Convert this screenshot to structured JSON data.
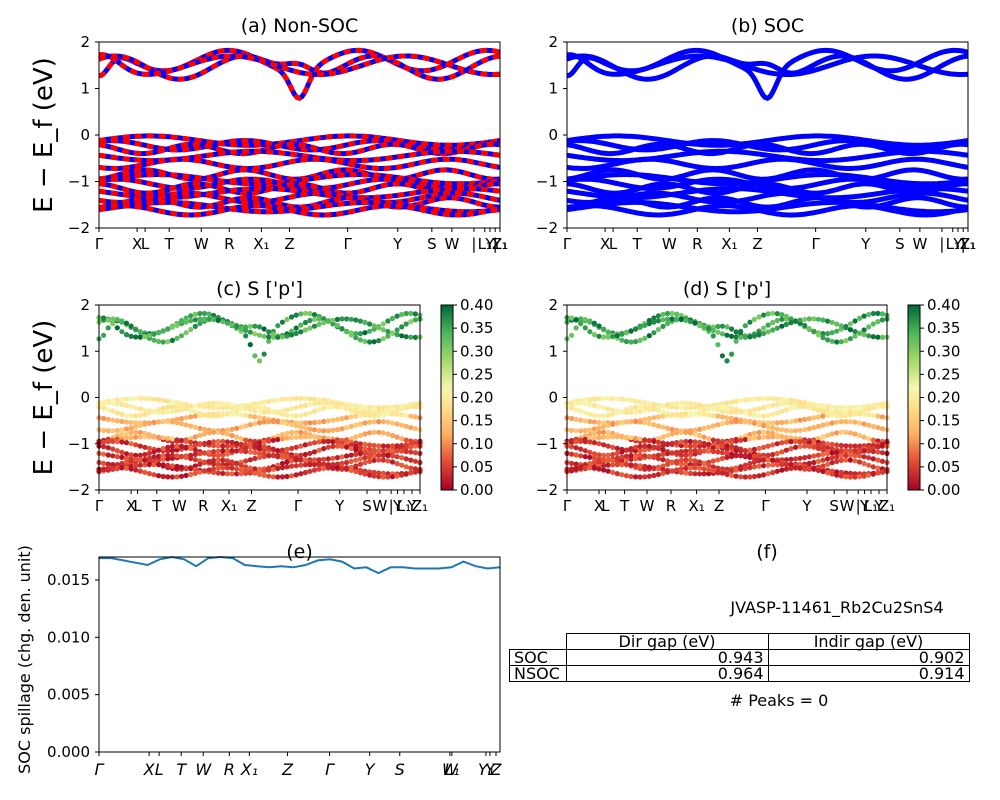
{
  "chart_data": [
    {
      "id": "a",
      "type": "line",
      "title": "(a) Non-SOC",
      "ylabel": "E − E_f (eV)",
      "ylim": [
        -2,
        2
      ],
      "yticks": [
        "2",
        "1",
        "0",
        "−1",
        "−2"
      ],
      "kpath": [
        "Γ",
        "X",
        "L",
        "T",
        "W",
        "R",
        "X₁",
        "Z",
        "Γ",
        "Y",
        "S",
        "W",
        "|",
        "L₁",
        "Y",
        "|",
        "Y₁",
        "Z₁"
      ],
      "series_colors": [
        "#0000ff",
        "#ff0000"
      ],
      "style": "dashed red over blue",
      "conduction_bands_ev": [
        0.9,
        1.85
      ],
      "valence_bands_ev": [
        -1.7,
        -0.1
      ]
    },
    {
      "id": "b",
      "type": "line",
      "title": "(b) SOC",
      "ylim": [
        -2,
        2
      ],
      "yticks": [
        "2",
        "1",
        "0",
        "−1",
        "−2"
      ],
      "kpath": [
        "Γ",
        "X",
        "L",
        "T",
        "W",
        "R",
        "X₁",
        "Z",
        "Γ",
        "Y",
        "S",
        "W",
        "|",
        "L₁",
        "Y",
        "|",
        "Y₁",
        "Z₁"
      ],
      "series_colors": [
        "#0000ff"
      ]
    },
    {
      "id": "c",
      "type": "scatter",
      "title": "(c)  S ['p']",
      "ylabel": "E − E_f (eV)",
      "ylim": [
        -2,
        2
      ],
      "yticks": [
        "2",
        "1",
        "0",
        "−1",
        "−2"
      ],
      "kpath": [
        "Γ",
        "X",
        "L",
        "T",
        "W",
        "R",
        "X₁",
        "Z",
        "Γ",
        "Y",
        "S",
        "W",
        "|",
        "Y",
        "L₁",
        "Y",
        "Z₁"
      ],
      "colorbar": {
        "min": 0.0,
        "max": 0.4,
        "ticks": [
          "0.40",
          "0.35",
          "0.30",
          "0.25",
          "0.20",
          "0.15",
          "0.10",
          "0.05",
          "0.00"
        ],
        "cmap": "RdYlGn"
      }
    },
    {
      "id": "d",
      "type": "scatter",
      "title": "(d) S ['p']",
      "ylim": [
        -2,
        2
      ],
      "yticks": [
        "2",
        "1",
        "0",
        "−1",
        "−2"
      ],
      "kpath": [
        "Γ",
        "X",
        "L",
        "T",
        "W",
        "R",
        "X₁",
        "Z",
        "Γ",
        "Y",
        "S",
        "W",
        "|",
        "Y",
        "L₁",
        "Y",
        "Z₁"
      ],
      "colorbar": {
        "min": 0.0,
        "max": 0.4,
        "ticks": [
          "0.40",
          "0.35",
          "0.30",
          "0.25",
          "0.20",
          "0.15",
          "0.10",
          "0.05",
          "0.00"
        ],
        "cmap": "RdYlGn"
      }
    },
    {
      "id": "e",
      "type": "line",
      "title": "(e)",
      "ylabel": "SOC spillage (chg. den. unit)",
      "ylim": [
        0,
        0.017
      ],
      "yticks": [
        "0.015",
        "0.010",
        "0.005",
        "0.000"
      ],
      "xticks": [
        "Γ",
        "X",
        "L",
        "T",
        "W",
        "R",
        "X₁",
        "Z",
        "Γ",
        "Y",
        "S",
        "W",
        "L₁",
        "Y₁",
        "Y",
        "Z"
      ],
      "series_colors": [
        "#1f77b4"
      ],
      "values": [
        0.0169,
        0.0169,
        0.0167,
        0.0165,
        0.0163,
        0.0168,
        0.017,
        0.0168,
        0.0162,
        0.0169,
        0.017,
        0.0169,
        0.0163,
        0.0162,
        0.0161,
        0.0162,
        0.0161,
        0.0163,
        0.0167,
        0.0168,
        0.0166,
        0.016,
        0.0161,
        0.0156,
        0.0161,
        0.0161,
        0.016,
        0.016,
        0.016,
        0.0161,
        0.0166,
        0.0162,
        0.016,
        0.0161
      ]
    },
    {
      "id": "f",
      "type": "table",
      "title": "(f)",
      "caption": "JVASP-11461_Rb2Cu2SnS4",
      "columns": [
        "Dir gap (eV)",
        "Indir gap (eV)"
      ],
      "rows": [
        {
          "label": "SOC",
          "values": [
            "0.943",
            "0.902"
          ]
        },
        {
          "label": "NSOC",
          "values": [
            "0.964",
            "0.914"
          ]
        }
      ],
      "footer": "# Peaks = 0"
    }
  ]
}
